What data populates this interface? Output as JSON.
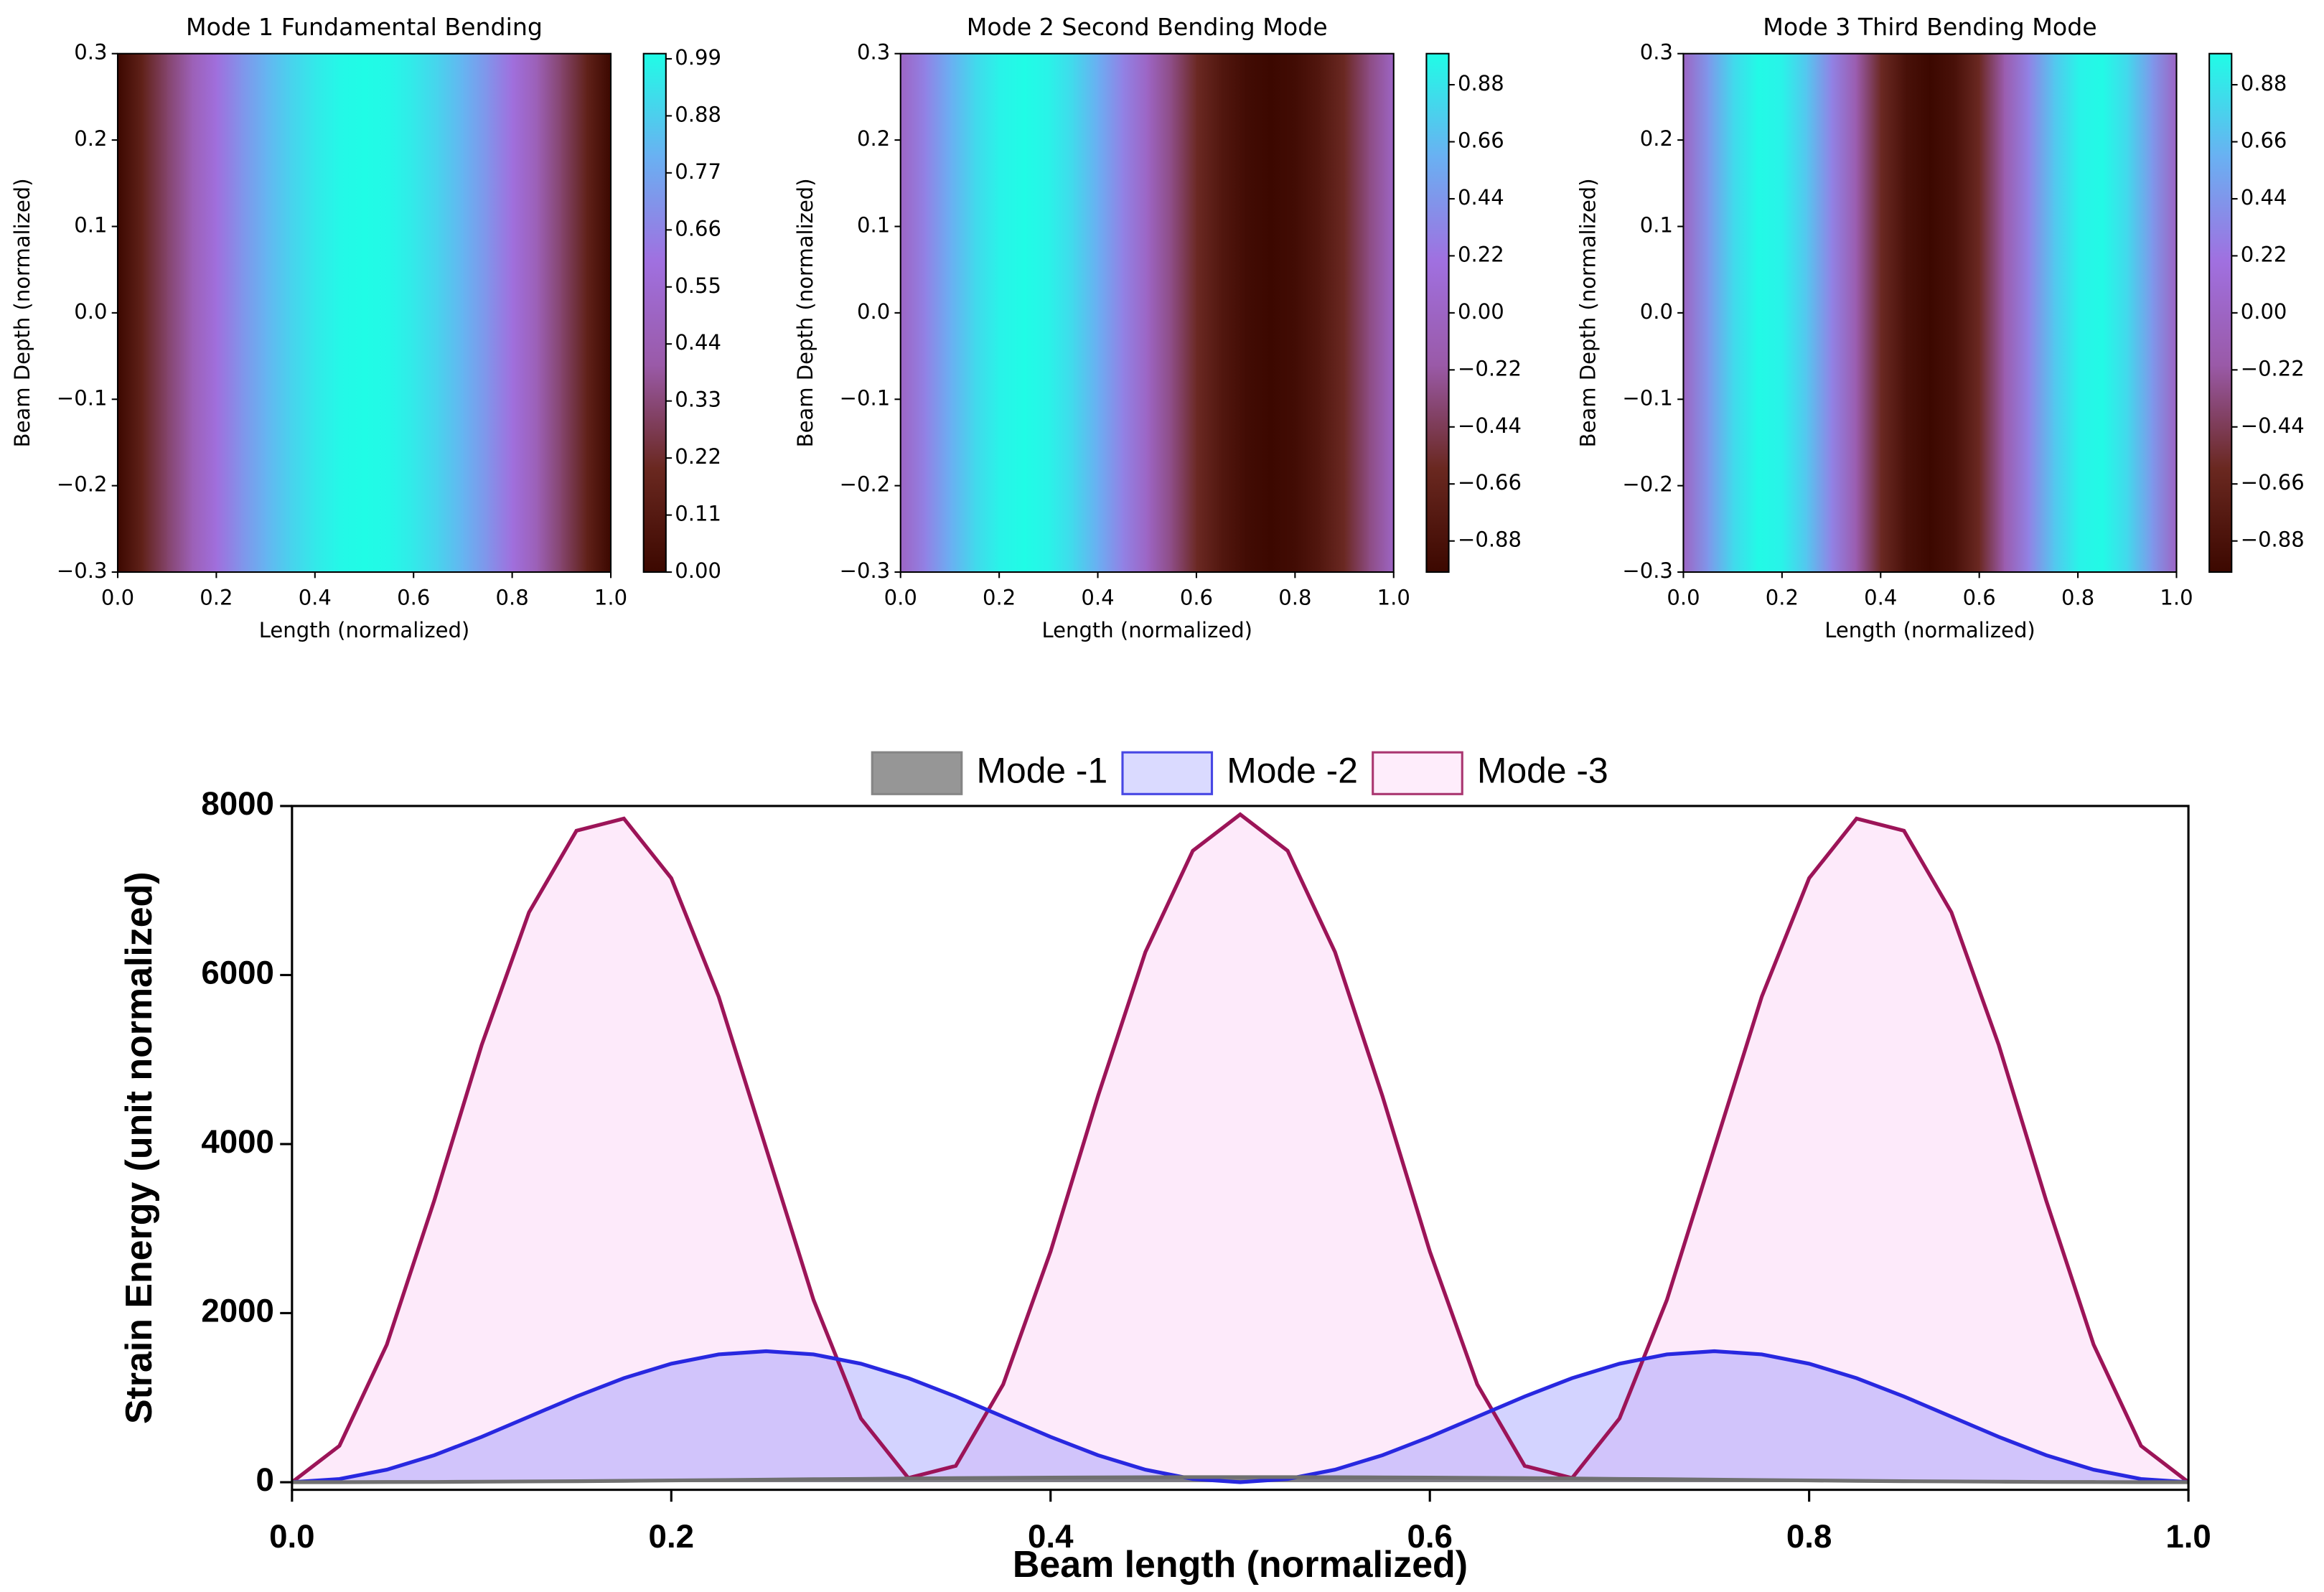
{
  "chart_data": [
    {
      "type": "heatmap",
      "title": "Mode 1 Fundamental Bending",
      "xlabel": "Length (normalized)",
      "ylabel": "Beam Depth (normalized)",
      "x": [
        0,
        0.05,
        0.1,
        0.15,
        0.2,
        0.25,
        0.3,
        0.35,
        0.4,
        0.45,
        0.5,
        0.55,
        0.6,
        0.65,
        0.7,
        0.75,
        0.8,
        0.85,
        0.9,
        0.95,
        1
      ],
      "values": [
        0,
        0.16,
        0.31,
        0.45,
        0.59,
        0.71,
        0.81,
        0.89,
        0.95,
        0.99,
        1,
        0.99,
        0.95,
        0.89,
        0.81,
        0.71,
        0.59,
        0.45,
        0.31,
        0.16,
        0
      ],
      "xlim": [
        0,
        1
      ],
      "ylim": [
        -0.3,
        0.3
      ],
      "xticks": [
        {
          "value": 0,
          "label": "0.0"
        },
        {
          "value": 0.2,
          "label": "0.2"
        },
        {
          "value": 0.4,
          "label": "0.4"
        },
        {
          "value": 0.6,
          "label": "0.6"
        },
        {
          "value": 0.8,
          "label": "0.8"
        },
        {
          "value": 1,
          "label": "1.0"
        }
      ],
      "yticks": [
        {
          "value": -0.3,
          "label": "−0.3"
        },
        {
          "value": -0.2,
          "label": "−0.2"
        },
        {
          "value": -0.1,
          "label": "−0.1"
        },
        {
          "value": 0,
          "label": "0.0"
        },
        {
          "value": 0.1,
          "label": "0.1"
        },
        {
          "value": 0.2,
          "label": "0.2"
        },
        {
          "value": 0.3,
          "label": "0.3"
        }
      ],
      "clim": [
        0,
        1
      ],
      "cticks": [
        {
          "value": 0,
          "label": "0.00"
        },
        {
          "value": 0.11,
          "label": "0.11"
        },
        {
          "value": 0.22,
          "label": "0.22"
        },
        {
          "value": 0.33,
          "label": "0.33"
        },
        {
          "value": 0.44,
          "label": "0.44"
        },
        {
          "value": 0.55,
          "label": "0.55"
        },
        {
          "value": 0.66,
          "label": "0.66"
        },
        {
          "value": 0.77,
          "label": "0.77"
        },
        {
          "value": 0.88,
          "label": "0.88"
        },
        {
          "value": 0.99,
          "label": "0.99"
        }
      ],
      "colormap": [
        "#3c0800",
        "#6a2820",
        "#9a5aa8",
        "#a070e0",
        "#6ab0f2",
        "#20fce6"
      ]
    },
    {
      "type": "heatmap",
      "title": "Mode 2 Second Bending Mode",
      "xlabel": "Length (normalized)",
      "ylabel": "Beam Depth (normalized)",
      "x": [
        0,
        0.05,
        0.1,
        0.15,
        0.2,
        0.25,
        0.3,
        0.35,
        0.4,
        0.45,
        0.5,
        0.55,
        0.6,
        0.65,
        0.7,
        0.75,
        0.8,
        0.85,
        0.9,
        0.95,
        1
      ],
      "values": [
        0,
        0.31,
        0.59,
        0.81,
        0.95,
        1,
        0.95,
        0.81,
        0.59,
        0.31,
        0,
        -0.31,
        -0.59,
        -0.81,
        -0.95,
        -1,
        -0.95,
        -0.81,
        -0.59,
        -0.31,
        0
      ],
      "xlim": [
        0,
        1
      ],
      "ylim": [
        -0.3,
        0.3
      ],
      "xticks": [
        {
          "value": 0,
          "label": "0.0"
        },
        {
          "value": 0.2,
          "label": "0.2"
        },
        {
          "value": 0.4,
          "label": "0.4"
        },
        {
          "value": 0.6,
          "label": "0.6"
        },
        {
          "value": 0.8,
          "label": "0.8"
        },
        {
          "value": 1,
          "label": "1.0"
        }
      ],
      "yticks": [
        {
          "value": -0.3,
          "label": "−0.3"
        },
        {
          "value": -0.2,
          "label": "−0.2"
        },
        {
          "value": -0.1,
          "label": "−0.1"
        },
        {
          "value": 0,
          "label": "0.0"
        },
        {
          "value": 0.1,
          "label": "0.1"
        },
        {
          "value": 0.2,
          "label": "0.2"
        },
        {
          "value": 0.3,
          "label": "0.3"
        }
      ],
      "clim": [
        -1,
        1
      ],
      "cticks": [
        {
          "value": -0.88,
          "label": "−0.88"
        },
        {
          "value": -0.66,
          "label": "−0.66"
        },
        {
          "value": -0.44,
          "label": "−0.44"
        },
        {
          "value": -0.22,
          "label": "−0.22"
        },
        {
          "value": 0,
          "label": "0.00"
        },
        {
          "value": 0.22,
          "label": "0.22"
        },
        {
          "value": 0.44,
          "label": "0.44"
        },
        {
          "value": 0.66,
          "label": "0.66"
        },
        {
          "value": 0.88,
          "label": "0.88"
        }
      ],
      "colormap": [
        "#3c0800",
        "#6a2820",
        "#9a5aa8",
        "#a070e0",
        "#6ab0f2",
        "#20fce6"
      ]
    },
    {
      "type": "heatmap",
      "title": "Mode 3 Third Bending Mode",
      "xlabel": "Length (normalized)",
      "ylabel": "Beam Depth (normalized)",
      "x": [
        0,
        0.05,
        0.1,
        0.15,
        0.2,
        0.25,
        0.3,
        0.35,
        0.4,
        0.45,
        0.5,
        0.55,
        0.6,
        0.65,
        0.7,
        0.75,
        0.8,
        0.85,
        0.9,
        0.95,
        1
      ],
      "values": [
        0,
        0.45,
        0.81,
        0.99,
        0.95,
        0.71,
        0.31,
        -0.16,
        -0.59,
        -0.89,
        -1,
        -0.89,
        -0.59,
        -0.16,
        0.31,
        0.71,
        0.95,
        0.99,
        0.81,
        0.45,
        0
      ],
      "xlim": [
        0,
        1
      ],
      "ylim": [
        -0.3,
        0.3
      ],
      "xticks": [
        {
          "value": 0,
          "label": "0.0"
        },
        {
          "value": 0.2,
          "label": "0.2"
        },
        {
          "value": 0.4,
          "label": "0.4"
        },
        {
          "value": 0.6,
          "label": "0.6"
        },
        {
          "value": 0.8,
          "label": "0.8"
        },
        {
          "value": 1,
          "label": "1.0"
        }
      ],
      "yticks": [
        {
          "value": -0.3,
          "label": "−0.3"
        },
        {
          "value": -0.2,
          "label": "−0.2"
        },
        {
          "value": -0.1,
          "label": "−0.1"
        },
        {
          "value": 0,
          "label": "0.0"
        },
        {
          "value": 0.1,
          "label": "0.1"
        },
        {
          "value": 0.2,
          "label": "0.2"
        },
        {
          "value": 0.3,
          "label": "0.3"
        }
      ],
      "clim": [
        -1,
        1
      ],
      "cticks": [
        {
          "value": -0.88,
          "label": "−0.88"
        },
        {
          "value": -0.66,
          "label": "−0.66"
        },
        {
          "value": -0.44,
          "label": "−0.44"
        },
        {
          "value": -0.22,
          "label": "−0.22"
        },
        {
          "value": 0,
          "label": "0.00"
        },
        {
          "value": 0.22,
          "label": "0.22"
        },
        {
          "value": 0.44,
          "label": "0.44"
        },
        {
          "value": 0.66,
          "label": "0.66"
        },
        {
          "value": 0.88,
          "label": "0.88"
        }
      ],
      "colormap": [
        "#3c0800",
        "#6a2820",
        "#9a5aa8",
        "#a070e0",
        "#6ab0f2",
        "#20fce6"
      ]
    },
    {
      "type": "area",
      "xlabel": "Beam length (normalized)",
      "ylabel": "Strain Energy (unit normalized)",
      "x": [
        0,
        0.025,
        0.05,
        0.075,
        0.1,
        0.125,
        0.15,
        0.175,
        0.2,
        0.225,
        0.25,
        0.275,
        0.3,
        0.325,
        0.35,
        0.375,
        0.4,
        0.425,
        0.45,
        0.475,
        0.5,
        0.525,
        0.55,
        0.575,
        0.6,
        0.625,
        0.65,
        0.675,
        0.7,
        0.725,
        0.75,
        0.775,
        0.8,
        0.825,
        0.85,
        0.875,
        0.9,
        0.925,
        0.95,
        0.975,
        1
      ],
      "series": [
        {
          "name": "Mode -1",
          "color": "#707070",
          "fill": "rgba(110,110,110,0.85)",
          "values": [
            0,
            0,
            2,
            3,
            6,
            9,
            12,
            16,
            21,
            25,
            30,
            35,
            39,
            44,
            48,
            51,
            54,
            57,
            59,
            60,
            60,
            60,
            59,
            57,
            54,
            51,
            48,
            44,
            39,
            35,
            30,
            25,
            21,
            16,
            12,
            9,
            6,
            3,
            2,
            0,
            0
          ]
        },
        {
          "name": "Mode -2",
          "color": "#2828e0",
          "fill": "rgba(110,110,255,0.3)",
          "values": [
            0,
            38,
            148,
            319,
            536,
            775,
            1014,
            1231,
            1402,
            1512,
            1550,
            1512,
            1402,
            1231,
            1014,
            775,
            536,
            319,
            148,
            38,
            0,
            38,
            148,
            319,
            536,
            775,
            1014,
            1231,
            1402,
            1512,
            1550,
            1512,
            1402,
            1231,
            1014,
            775,
            536,
            319,
            148,
            38,
            0
          ]
        },
        {
          "name": "Mode -3",
          "color": "#9c1458",
          "fill": "rgba(252,220,246,0.6)",
          "values": [
            0,
            430,
            1628,
            3332,
            5171,
            6743,
            7707,
            7851,
            7146,
            5743,
            3950,
            2157,
            754,
            49,
            193,
            1157,
            2729,
            4568,
            6272,
            7470,
            7900,
            7470,
            6272,
            4568,
            2729,
            1157,
            193,
            49,
            754,
            2157,
            3950,
            5743,
            7146,
            7851,
            7707,
            6743,
            5171,
            3332,
            1628,
            430,
            0
          ]
        }
      ],
      "xlim": [
        0,
        1
      ],
      "ylim": [
        -90,
        8000
      ],
      "xticks": [
        {
          "value": 0,
          "label": "0.0"
        },
        {
          "value": 0.2,
          "label": "0.2"
        },
        {
          "value": 0.4,
          "label": "0.4"
        },
        {
          "value": 0.6,
          "label": "0.6"
        },
        {
          "value": 0.8,
          "label": "0.8"
        },
        {
          "value": 1,
          "label": "1.0"
        }
      ],
      "yticks": [
        0,
        2000,
        4000,
        6000,
        8000
      ],
      "grid": false,
      "legend": "top"
    }
  ]
}
